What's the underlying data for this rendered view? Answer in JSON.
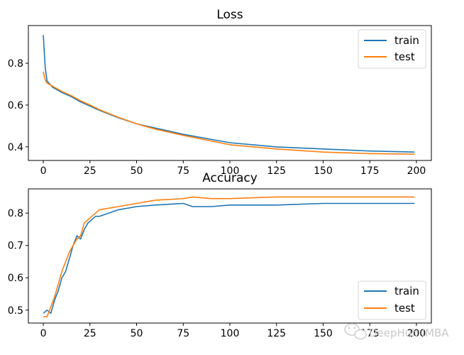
{
  "chart_data": [
    {
      "type": "line",
      "title": "Loss",
      "xlabel": "",
      "ylabel": "",
      "xlim": [
        -8,
        208
      ],
      "ylim": [
        0.335,
        0.98
      ],
      "xticks": [
        0,
        25,
        50,
        75,
        100,
        125,
        150,
        175,
        200
      ],
      "yticks": [
        0.4,
        0.6,
        0.8
      ],
      "ytick_labels": [
        "0.4",
        "0.6",
        "0.8"
      ],
      "grid": false,
      "legend_position": "top-right",
      "series": [
        {
          "name": "train",
          "color": "#1f77b4",
          "x": [
            0,
            1,
            2,
            5,
            10,
            15,
            20,
            25,
            30,
            40,
            50,
            60,
            75,
            100,
            125,
            150,
            175,
            199
          ],
          "y": [
            0.935,
            0.78,
            0.715,
            0.685,
            0.66,
            0.64,
            0.615,
            0.595,
            0.575,
            0.54,
            0.51,
            0.49,
            0.46,
            0.42,
            0.4,
            0.39,
            0.38,
            0.375
          ]
        },
        {
          "name": "test",
          "color": "#ff7f0e",
          "x": [
            0,
            1,
            2,
            5,
            10,
            15,
            20,
            25,
            30,
            40,
            50,
            60,
            75,
            100,
            125,
            150,
            175,
            199
          ],
          "y": [
            0.76,
            0.72,
            0.705,
            0.69,
            0.665,
            0.645,
            0.62,
            0.6,
            0.578,
            0.542,
            0.51,
            0.485,
            0.455,
            0.41,
            0.39,
            0.375,
            0.368,
            0.365
          ]
        }
      ]
    },
    {
      "type": "line",
      "title": "Accuracy",
      "xlabel": "",
      "ylabel": "",
      "xlim": [
        -8,
        208
      ],
      "ylim": [
        0.46,
        0.875
      ],
      "xticks": [
        0,
        25,
        50,
        75,
        100,
        125,
        150,
        175,
        200
      ],
      "yticks": [
        0.5,
        0.6,
        0.7,
        0.8
      ],
      "ytick_labels": [
        "0.5",
        "0.6",
        "0.7",
        "0.8"
      ],
      "grid": false,
      "legend_position": "bottom-right",
      "series": [
        {
          "name": "train",
          "color": "#1f77b4",
          "x": [
            0,
            2,
            4,
            6,
            8,
            10,
            12,
            14,
            16,
            18,
            20,
            22,
            24,
            26,
            28,
            30,
            35,
            40,
            50,
            60,
            75,
            80,
            90,
            100,
            125,
            150,
            175,
            199
          ],
          "y": [
            0.49,
            0.5,
            0.49,
            0.53,
            0.56,
            0.6,
            0.62,
            0.66,
            0.7,
            0.73,
            0.72,
            0.75,
            0.77,
            0.78,
            0.79,
            0.79,
            0.8,
            0.81,
            0.82,
            0.825,
            0.83,
            0.82,
            0.82,
            0.825,
            0.825,
            0.83,
            0.83,
            0.83
          ]
        },
        {
          "name": "test",
          "color": "#ff7f0e",
          "x": [
            0,
            2,
            4,
            6,
            8,
            10,
            12,
            14,
            16,
            18,
            20,
            22,
            24,
            26,
            28,
            30,
            35,
            40,
            50,
            60,
            75,
            80,
            90,
            100,
            125,
            150,
            175,
            199
          ],
          "y": [
            0.48,
            0.48,
            0.51,
            0.54,
            0.58,
            0.62,
            0.65,
            0.68,
            0.7,
            0.72,
            0.73,
            0.77,
            0.78,
            0.79,
            0.8,
            0.81,
            0.815,
            0.82,
            0.83,
            0.84,
            0.845,
            0.85,
            0.845,
            0.845,
            0.85,
            0.85,
            0.85,
            0.85
          ]
        }
      ]
    }
  ],
  "watermark": {
    "text": "DeepHub IMBA",
    "icon": "wechat-bubble-icon"
  }
}
